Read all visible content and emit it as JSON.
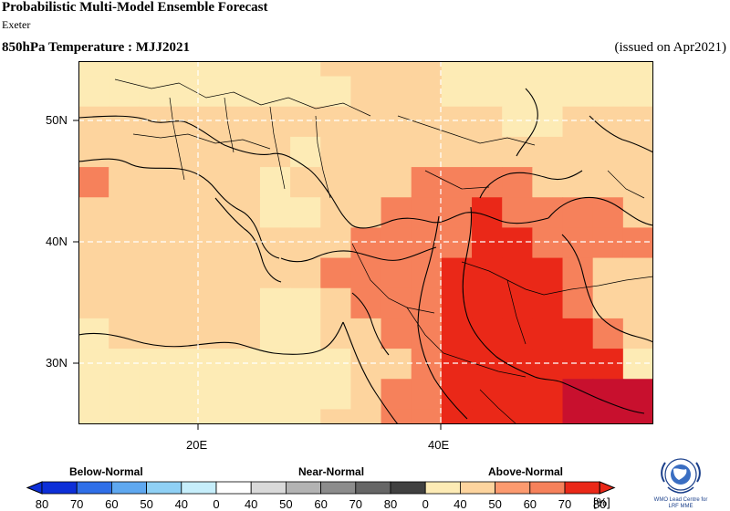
{
  "header": {
    "title": "Probabilistic Multi-Model Ensemble Forecast",
    "subtitle": "Exeter",
    "variable": "850hPa Temperature : MJJ2021",
    "issued": "(issued on Apr2021)"
  },
  "map": {
    "lat_labels": [
      "50N",
      "40N",
      "30N"
    ],
    "lon_labels": [
      "20E",
      "40E"
    ],
    "category_colors": {
      "above_40_50": "#fdebb5",
      "above_50_60": "#fdd49e",
      "above_60_70": "#f6815b",
      "above_70_80": "#ea2818",
      "above_80": "#c8102e"
    }
  },
  "legend": {
    "below_label": "Below-Normal",
    "near_label": "Near-Normal",
    "above_label": "Above-Normal",
    "ticks": [
      "80",
      "70",
      "60",
      "50",
      "40",
      "0",
      "40",
      "50",
      "60",
      "70",
      "80",
      "0",
      "40",
      "50",
      "60",
      "70",
      "80"
    ],
    "unit": "[%]",
    "colors": {
      "below": [
        "#0d2fd8",
        "#2f6fe8",
        "#5fa8f0",
        "#8fd0f5",
        "#c6eefb"
      ],
      "near": [
        "#ffffff",
        "#d9d9d9",
        "#b3b3b3",
        "#8c8c8c",
        "#666666",
        "#404040"
      ],
      "above": [
        "#fdebb5",
        "#fdd49e",
        "#fc9a6f",
        "#f6815b",
        "#ea2818"
      ]
    }
  },
  "logo": {
    "text_line1": "WMO Lead Centre for",
    "text_line2": "LRF MME"
  }
}
